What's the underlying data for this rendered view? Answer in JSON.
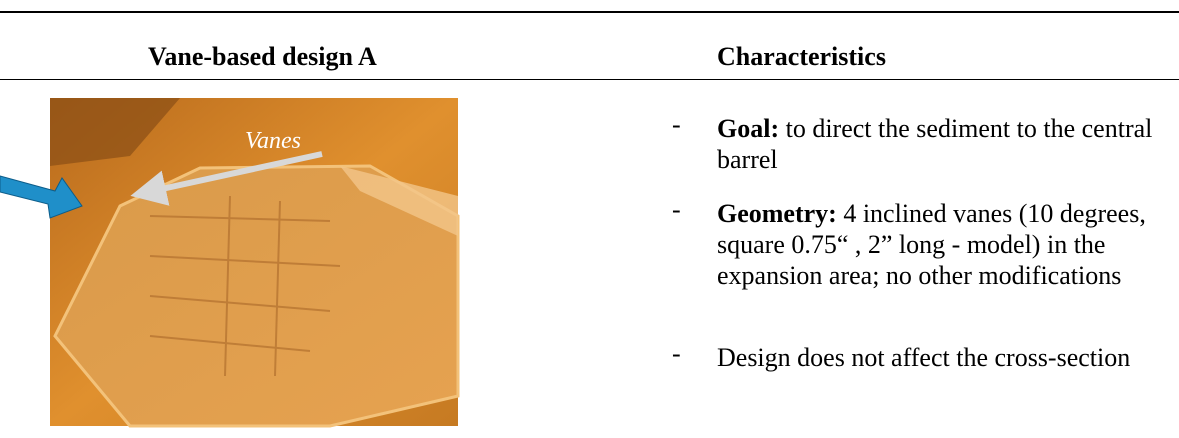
{
  "header": {
    "columns": [
      "Vane-based design A",
      "Characteristics"
    ]
  },
  "image": {
    "label": "Vanes"
  },
  "bullets": [
    {
      "label": "Goal:",
      "text": "to direct the sediment to the central barrel"
    },
    {
      "label": "Geometry:",
      "text": "4 inclined vanes (10 degrees, square 0.75“ , 2” long - model) in the expansion area; no other modifications"
    },
    {
      "text": "Design does not affect the cross-section"
    }
  ]
}
